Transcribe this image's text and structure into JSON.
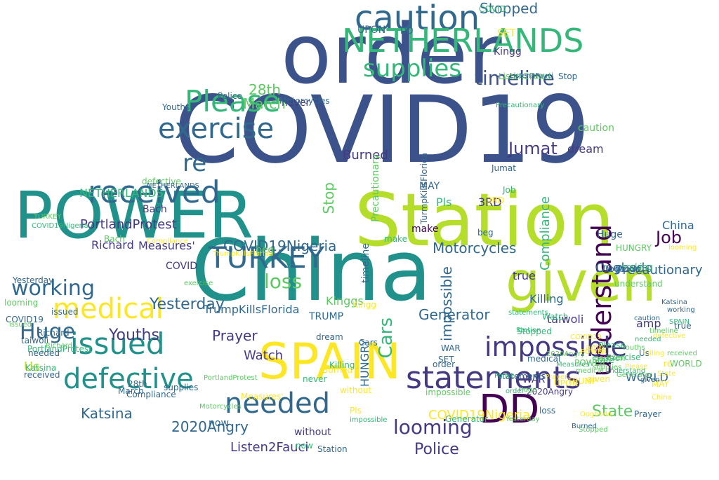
{
  "palette": {
    "dark_purple": "#440154",
    "indigo": "#3b528b",
    "teal_blue": "#31688e",
    "teal": "#21918c",
    "green": "#35b779",
    "light_green": "#5ec962",
    "yellow_green": "#b5de2b",
    "yellow": "#fde725"
  },
  "words": [
    {
      "text": "COVID19",
      "c": "#3b528b",
      "r": 0
    },
    {
      "text": "order",
      "c": "#3b528b",
      "r": 0
    },
    {
      "text": "China",
      "c": "#21918c",
      "r": 0
    },
    {
      "text": "Station",
      "c": "#b5de2b",
      "r": 0
    },
    {
      "text": "POWER",
      "c": "#21918c",
      "r": 0
    },
    {
      "text": "given",
      "c": "#b5de2b",
      "r": 0
    },
    {
      "text": "SPAIN",
      "c": "#fde725",
      "r": 0
    },
    {
      "text": "caution",
      "c": "#31688e",
      "r": 0
    },
    {
      "text": "NETHERLANDS",
      "c": "#35b779",
      "r": 0
    },
    {
      "text": "understand",
      "c": "#440154",
      "r": 90
    },
    {
      "text": "statements",
      "c": "#443a83",
      "r": 0
    },
    {
      "text": "impossible",
      "c": "#443a83",
      "r": 0
    },
    {
      "text": "DD",
      "c": "#440154",
      "r": 0
    },
    {
      "text": "needed",
      "c": "#31688e",
      "r": 0
    },
    {
      "text": "defective",
      "c": "#21918c",
      "r": 0
    },
    {
      "text": "medical",
      "c": "#fde725",
      "r": 0
    },
    {
      "text": "issued",
      "c": "#21918c",
      "r": 0
    },
    {
      "text": "received",
      "c": "#31688e",
      "r": 0
    },
    {
      "text": "exercise",
      "c": "#31688e",
      "r": 0
    },
    {
      "text": "Please",
      "c": "#35b779",
      "r": 0
    },
    {
      "text": "supplies",
      "c": "#35b779",
      "r": 0
    },
    {
      "text": "timeline",
      "c": "#3b528b",
      "r": 0
    },
    {
      "text": "TURKEY",
      "c": "#31688e",
      "r": 0
    },
    {
      "text": "working",
      "c": "#31688e",
      "r": 0
    },
    {
      "text": "Huge",
      "c": "#31688e",
      "r": 0
    },
    {
      "text": "re",
      "c": "#31688e",
      "r": 0
    },
    {
      "text": "looming",
      "c": "#443a83",
      "r": 0
    },
    {
      "text": "Police",
      "c": "#443a83",
      "r": 0
    },
    {
      "text": "Job",
      "c": "#440154",
      "r": 0
    },
    {
      "text": "loss",
      "c": "#5ec962",
      "r": 0
    },
    {
      "text": "Stopped",
      "c": "#31688e",
      "r": 0
    },
    {
      "text": "Jumat",
      "c": "#443a83",
      "r": 0
    },
    {
      "text": "Katsina",
      "c": "#31688e",
      "r": 0
    },
    {
      "text": "Yesterday",
      "c": "#31688e",
      "r": 0
    },
    {
      "text": "Youths",
      "c": "#443a83",
      "r": 0
    },
    {
      "text": "COVID19Nigeria",
      "c": "#31688e",
      "r": 0
    },
    {
      "text": "2020Angry",
      "c": "#31688e",
      "r": 0
    },
    {
      "text": "Motorcycles",
      "c": "#31688e",
      "r": 0
    },
    {
      "text": "Burned",
      "c": "#443a83",
      "r": 0
    },
    {
      "text": "28th",
      "c": "#5ec962",
      "r": 0
    },
    {
      "text": "March",
      "c": "#5ec962",
      "r": 0
    },
    {
      "text": "Generator",
      "c": "#31688e",
      "r": 0
    },
    {
      "text": "Precautionary",
      "c": "#31688e",
      "r": 0
    },
    {
      "text": "Prayer",
      "c": "#443a83",
      "r": 0
    },
    {
      "text": "State",
      "c": "#5ec962",
      "r": 0
    },
    {
      "text": "Watch",
      "c": "#443a83",
      "r": 0
    },
    {
      "text": "Oogbodo",
      "c": "#31688e",
      "r": 0
    },
    {
      "text": "Listen2Fauci",
      "c": "#443a83",
      "r": 0
    },
    {
      "text": "Kinggs",
      "c": "#5ec962",
      "r": 0
    },
    {
      "text": "TrumpKillsFlorida",
      "c": "#31688e",
      "r": 0
    },
    {
      "text": "PortlandProtest",
      "c": "#443a83",
      "r": 0
    },
    {
      "text": "Richard",
      "c": "#443a83",
      "r": 0
    },
    {
      "text": "Measures'",
      "c": "#443a83",
      "r": 0
    },
    {
      "text": "Us",
      "c": "#b5de2b",
      "r": 0
    },
    {
      "text": "Cars",
      "c": "#35b779",
      "r": 90
    },
    {
      "text": "impossible",
      "c": "#31688e",
      "r": 90
    },
    {
      "text": "Compliance",
      "c": "#35b779",
      "r": 90
    },
    {
      "text": "Killing",
      "c": "#31688e",
      "r": 0
    },
    {
      "text": "taiwoli",
      "c": "#443a83",
      "r": 0
    },
    {
      "text": "Stop",
      "c": "#5ec962",
      "r": 90
    },
    {
      "text": "WORLD",
      "c": "#31688e",
      "r": 0
    },
    {
      "text": "amp",
      "c": "#443a83",
      "r": 0
    },
    {
      "text": "true",
      "c": "#443a83",
      "r": 0
    },
    {
      "text": "beg",
      "c": "#5ec962",
      "r": 0
    },
    {
      "text": "dream",
      "c": "#443a83",
      "r": 0
    },
    {
      "text": "Pls",
      "c": "#35b779",
      "r": 0
    },
    {
      "text": "make",
      "c": "#440154",
      "r": 0
    },
    {
      "text": "3RD",
      "c": "#443a83",
      "r": 0
    },
    {
      "text": "China",
      "c": "#31688e",
      "r": 0
    },
    {
      "text": "caution",
      "c": "#5ec962",
      "r": 0
    },
    {
      "text": "COVID",
      "c": "#443a83",
      "r": 0
    },
    {
      "text": "HUNGRY",
      "c": "#31688e",
      "r": 90
    },
    {
      "text": "WAR",
      "c": "#443a83",
      "r": 0
    },
    {
      "text": "TRUMP",
      "c": "#31688e",
      "r": 0
    },
    {
      "text": "Bach",
      "c": "#443a83",
      "r": 0
    },
    {
      "text": "without",
      "c": "#443a83",
      "r": 0
    },
    {
      "text": "never",
      "c": "#443a83",
      "r": 0
    },
    {
      "text": "now",
      "c": "#31688e",
      "r": 0
    },
    {
      "text": "SET",
      "c": "#fde725",
      "r": 0
    },
    {
      "text": "UPON",
      "c": "#31688e",
      "r": 0
    },
    {
      "text": "Kingg",
      "c": "#443a83",
      "r": 0
    },
    {
      "text": "MAY",
      "c": "#31688e",
      "r": 0
    },
    {
      "text": "NETHERLANDS",
      "c": "#35b779",
      "r": 0
    },
    {
      "text": "COVID19Nigeria",
      "c": "#fde725",
      "r": 0
    },
    {
      "text": "looming",
      "c": "#5ec962",
      "r": 0
    },
    {
      "text": "2020Angry",
      "c": "#443a83",
      "r": 0
    },
    {
      "text": "State",
      "c": "#35b779",
      "r": 0
    },
    {
      "text": "Yesterday",
      "c": "#31688e",
      "r": 0
    },
    {
      "text": "Prayer",
      "c": "#31688e",
      "r": 0
    },
    {
      "text": "Richard",
      "c": "#31688e",
      "r": 0
    },
    {
      "text": "Police",
      "c": "#31688e",
      "r": 0
    },
    {
      "text": "Youths",
      "c": "#31688e",
      "r": 0
    },
    {
      "text": "Station",
      "c": "#31688e",
      "r": 0
    },
    {
      "text": "Generator",
      "c": "#35b779",
      "r": 0
    },
    {
      "text": "medical",
      "c": "#31688e",
      "r": 0
    },
    {
      "text": "statements",
      "c": "#31688e",
      "r": 0
    },
    {
      "text": "exercise",
      "c": "#35b779",
      "r": 0
    },
    {
      "text": "COVID19",
      "c": "#31688e",
      "r": 0
    },
    {
      "text": "Huge",
      "c": "#31688e",
      "r": 0
    },
    {
      "text": "Katsina",
      "c": "#35b779",
      "r": 0
    },
    {
      "text": "working",
      "c": "#35b779",
      "r": 0
    },
    {
      "text": "issued",
      "c": "#31688e",
      "r": 0
    },
    {
      "text": "Please",
      "c": "#35b779",
      "r": 0
    },
    {
      "text": "POWER",
      "c": "#5ec962",
      "r": 0
    },
    {
      "text": "supplies",
      "c": "#31688e",
      "r": 0
    },
    {
      "text": "timeline",
      "c": "#31688e",
      "r": 90
    },
    {
      "text": "Precautionary",
      "c": "#5ec962",
      "r": 90
    },
    {
      "text": "TurmpKillsFlorida",
      "c": "#31688e",
      "r": 90
    },
    {
      "text": "Listen2Fauci",
      "c": "#5ec962",
      "r": 0
    },
    {
      "text": "Measures'",
      "c": "#fde725",
      "r": 0
    },
    {
      "text": "Stopped",
      "c": "#35b779",
      "r": 0
    },
    {
      "text": "Oogbodo",
      "c": "#31688e",
      "r": 0
    },
    {
      "text": "Motorcycles",
      "c": "#31688e",
      "r": 0
    },
    {
      "text": "PortlandProtest",
      "c": "#35b779",
      "r": 0
    },
    {
      "text": "Burned",
      "c": "#fde725",
      "r": 0
    },
    {
      "text": "Killing",
      "c": "#35b779",
      "r": 0
    },
    {
      "text": "Compliance",
      "c": "#31688e",
      "r": 0
    },
    {
      "text": "defective",
      "c": "#5ec962",
      "r": 0
    },
    {
      "text": "received",
      "c": "#31688e",
      "r": 0
    },
    {
      "text": "understand",
      "c": "#5ec962",
      "r": 0
    },
    {
      "text": "impossible",
      "c": "#5ec962",
      "r": 0
    },
    {
      "text": "caution",
      "c": "#5ec962",
      "r": 0
    },
    {
      "text": "needed",
      "c": "#31688e",
      "r": 0
    },
    {
      "text": "given",
      "c": "#fde725",
      "r": 0
    },
    {
      "text": "order",
      "c": "#31688e",
      "r": 0
    },
    {
      "text": "Watch",
      "c": "#35b779",
      "r": 0
    },
    {
      "text": "March",
      "c": "#31688e",
      "r": 0
    },
    {
      "text": "28th",
      "c": "#31688e",
      "r": 0
    },
    {
      "text": "Jumat",
      "c": "#31688e",
      "r": 0
    },
    {
      "text": "Job",
      "c": "#35b779",
      "r": 0
    },
    {
      "text": "Bach",
      "c": "#5ec962",
      "r": 0
    },
    {
      "text": "dream",
      "c": "#31688e",
      "r": 0
    },
    {
      "text": "Cars",
      "c": "#31688e",
      "r": 0
    },
    {
      "text": "Pls",
      "c": "#fde725",
      "r": 0
    },
    {
      "text": "beg",
      "c": "#31688e",
      "r": 0
    },
    {
      "text": "make",
      "c": "#35b779",
      "r": 0
    },
    {
      "text": "amp",
      "c": "#fde725",
      "r": 0
    },
    {
      "text": "true",
      "c": "#31688e",
      "r": 0
    },
    {
      "text": "WORLD",
      "c": "#5ec962",
      "r": 0
    },
    {
      "text": "WAR",
      "c": "#31688e",
      "r": 0
    },
    {
      "text": "UPON",
      "c": "#fde725",
      "r": 0
    },
    {
      "text": "SET",
      "c": "#31688e",
      "r": 0
    },
    {
      "text": "MAY",
      "c": "#fde725",
      "r": 0
    },
    {
      "text": "TRUMP",
      "c": "#fde725",
      "r": 0
    },
    {
      "text": "HUNGRY",
      "c": "#5ec962",
      "r": 0
    },
    {
      "text": "Kingg",
      "c": "#fde725",
      "r": 0
    },
    {
      "text": "taiwoli",
      "c": "#31688e",
      "r": 0
    },
    {
      "text": "never",
      "c": "#35b779",
      "r": 0
    },
    {
      "text": "without",
      "c": "#fde725",
      "r": 0
    },
    {
      "text": "now",
      "c": "#35b779",
      "r": 0
    },
    {
      "text": "Us",
      "c": "#31688e",
      "r": 0
    },
    {
      "text": "loss",
      "c": "#31688e",
      "r": 0
    },
    {
      "text": "3RD",
      "c": "#fde725",
      "r": 0
    },
    {
      "text": "re",
      "c": "#fde725",
      "r": 0
    },
    {
      "text": "COVID",
      "c": "#35b779",
      "r": 0
    },
    {
      "text": "DD",
      "c": "#31688e",
      "r": 0
    },
    {
      "text": "Stop",
      "c": "#31688e",
      "r": 0
    },
    {
      "text": "Huge",
      "c": "#5ec962",
      "r": 0
    },
    {
      "text": "State",
      "c": "#fde725",
      "r": 0
    },
    {
      "text": "Police",
      "c": "#35b779",
      "r": 0
    },
    {
      "text": "Prayer",
      "c": "#fde725",
      "r": 0
    },
    {
      "text": "Youths",
      "c": "#5ec962",
      "r": 0
    },
    {
      "text": "Richard",
      "c": "#5ec962",
      "r": 0
    },
    {
      "text": "Katsina",
      "c": "#31688e",
      "r": 0
    },
    {
      "text": "Yesterday",
      "c": "#5ec962",
      "r": 0
    },
    {
      "text": "Station",
      "c": "#35b779",
      "r": 0
    },
    {
      "text": "looming",
      "c": "#fde725",
      "r": 0
    },
    {
      "text": "2020Angry",
      "c": "#5ec962",
      "r": 0
    },
    {
      "text": "medical",
      "c": "#5ec962",
      "r": 0
    },
    {
      "text": "issued",
      "c": "#5ec962",
      "r": 0
    },
    {
      "text": "exercise",
      "c": "#5ec962",
      "r": 0
    },
    {
      "text": "statements",
      "c": "#35b779",
      "r": 0
    },
    {
      "text": "Generator",
      "c": "#5ec962",
      "r": 0
    },
    {
      "text": "COVID19Nigeria",
      "c": "#35b779",
      "r": 0
    },
    {
      "text": "NETHERLANDS",
      "c": "#31688e",
      "r": 0
    },
    {
      "text": "Motorcycles",
      "c": "#5ec962",
      "r": 0
    },
    {
      "text": "Compliance",
      "c": "#fde725",
      "r": 0
    },
    {
      "text": "Measures'",
      "c": "#35b779",
      "r": 0
    },
    {
      "text": "PortlandProtest",
      "c": "#5ec962",
      "r": 0
    },
    {
      "text": "TrumpKillsFlorida",
      "c": "#fde725",
      "r": 0
    },
    {
      "text": "Listen2Fauci",
      "c": "#31688e",
      "r": 0
    },
    {
      "text": "Precautionary",
      "c": "#35b779",
      "r": 0
    },
    {
      "text": "Oogbodo",
      "c": "#fde725",
      "r": 0
    },
    {
      "text": "Burned",
      "c": "#31688e",
      "r": 0
    },
    {
      "text": "Killing",
      "c": "#fde725",
      "r": 0
    },
    {
      "text": "Stopped",
      "c": "#5ec962",
      "r": 0
    },
    {
      "text": "impossible",
      "c": "#35b779",
      "r": 0
    },
    {
      "text": "understand",
      "c": "#35b779",
      "r": 0
    },
    {
      "text": "defective",
      "c": "#fde725",
      "r": 0
    },
    {
      "text": "received",
      "c": "#5ec962",
      "r": 0
    },
    {
      "text": "supplies",
      "c": "#5ec962",
      "r": 0
    },
    {
      "text": "working",
      "c": "#31688e",
      "r": 0
    },
    {
      "text": "timeline",
      "c": "#5ec962",
      "r": 0
    },
    {
      "text": "TURKEY",
      "c": "#5ec962",
      "r": 0
    },
    {
      "text": "Please",
      "c": "#fde725",
      "r": 0
    },
    {
      "text": "caution",
      "c": "#31688e",
      "r": 0
    },
    {
      "text": "needed",
      "c": "#35b779",
      "r": 0
    },
    {
      "text": "SPAIN",
      "c": "#35b779",
      "r": 0
    },
    {
      "text": "POWER",
      "c": "#fde725",
      "r": 0
    },
    {
      "text": "given",
      "c": "#31688e",
      "r": 0
    },
    {
      "text": "China",
      "c": "#fde725",
      "r": 0
    },
    {
      "text": "COVID19",
      "c": "#fde725",
      "r": 0
    },
    {
      "text": "order",
      "c": "#35b779",
      "r": 0
    }
  ]
}
